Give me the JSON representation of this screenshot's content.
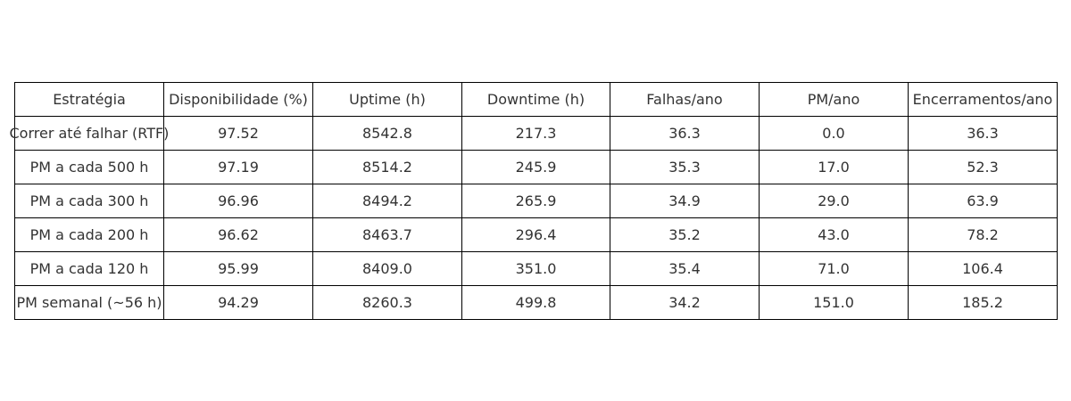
{
  "chart_data": {
    "type": "table",
    "columns": [
      "Estratégia",
      "Disponibilidade (%)",
      "Uptime (h)",
      "Downtime (h)",
      "Falhas/ano",
      "PM/ano",
      "Encerramentos/ano"
    ],
    "rows": [
      [
        "Correr até falhar (RTF)",
        "97.52",
        "8542.8",
        "217.3",
        "36.3",
        "0.0",
        "36.3"
      ],
      [
        "PM a cada 500 h",
        "97.19",
        "8514.2",
        "245.9",
        "35.3",
        "17.0",
        "52.3"
      ],
      [
        "PM a cada 300 h",
        "96.96",
        "8494.2",
        "265.9",
        "34.9",
        "29.0",
        "63.9"
      ],
      [
        "PM a cada 200 h",
        "96.62",
        "8463.7",
        "296.4",
        "35.2",
        "43.0",
        "78.2"
      ],
      [
        "PM a cada 120 h",
        "95.99",
        "8409.0",
        "351.0",
        "35.4",
        "71.0",
        "106.4"
      ],
      [
        "PM semanal (~56 h)",
        "94.29",
        "8260.3",
        "499.8",
        "34.2",
        "151.0",
        "185.2"
      ]
    ],
    "colors": {
      "border": "#000000",
      "text": "#333333",
      "background": "#ffffff"
    }
  }
}
